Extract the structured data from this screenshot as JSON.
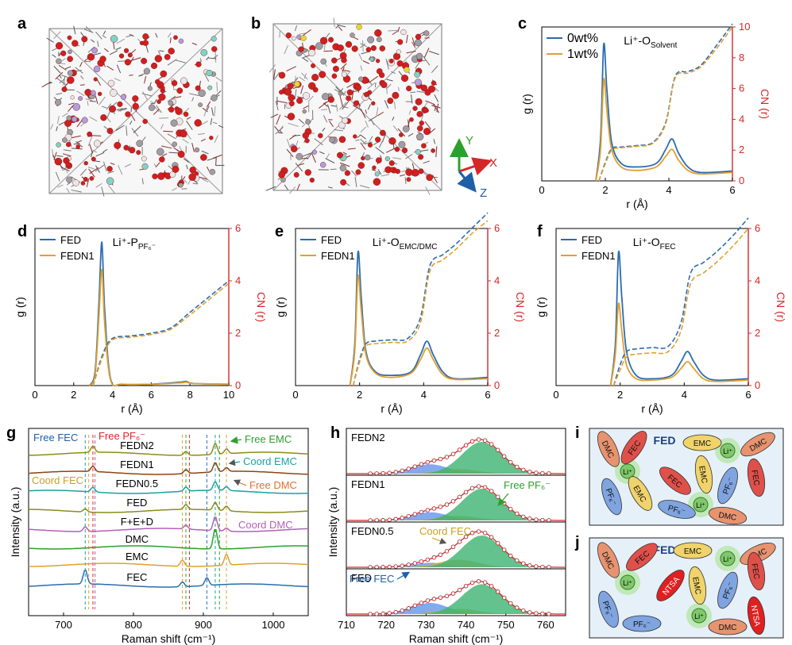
{
  "panel_labels": {
    "a": "a",
    "b": "b",
    "c": "c",
    "d": "d",
    "e": "e",
    "f": "f",
    "g": "g",
    "h": "h",
    "i": "i",
    "j": "j"
  },
  "colors": {
    "blue": "#2b6cb0",
    "orange": "#e0a030",
    "red": "#d62728",
    "green": "#2ca02c",
    "teal": "#17a2a2",
    "purple": "#b55fb5",
    "olive": "#8c8c1a",
    "brown": "#8b4513",
    "fill_green": "#3cb371",
    "fill_blue": "#6495ed",
    "fill_orange": "#d4a843"
  },
  "axes": {
    "axis_labels": {
      "g_r": "g (r)",
      "cn_r": "CN (r)",
      "r_A": "r (Å)",
      "intensity": "Intensity (a.u.)",
      "raman": "Raman shift (cm⁻¹)"
    }
  },
  "panel_c": {
    "legend": [
      "0wt%",
      "1wt%"
    ],
    "annotation": "Li⁺-O",
    "annotation_sub": "Solvent",
    "x_ticks": [
      "0",
      "2",
      "4",
      "6"
    ],
    "cn_ticks": [
      "0",
      "2",
      "4",
      "6",
      "8",
      "10"
    ]
  },
  "panel_d": {
    "legend": [
      "FED",
      "FEDN1"
    ],
    "annotation": "Li⁺-P",
    "annotation_sub": "PF₆⁻",
    "x_ticks": [
      "0",
      "2",
      "4",
      "6",
      "8",
      "10"
    ],
    "cn_ticks": [
      "0",
      "2",
      "4",
      "6"
    ]
  },
  "panel_e": {
    "legend": [
      "FED",
      "FEDN1"
    ],
    "annotation": "Li⁺-O",
    "annotation_sub": "EMC/DMC",
    "x_ticks": [
      "0",
      "2",
      "4",
      "6"
    ],
    "cn_ticks": [
      "0",
      "2",
      "4",
      "6"
    ]
  },
  "panel_f": {
    "legend": [
      "FED",
      "FEDN1"
    ],
    "annotation": "Li⁺-O",
    "annotation_sub": "FEC",
    "x_ticks": [
      "0",
      "2",
      "4",
      "6"
    ],
    "cn_ticks": [
      "0",
      "2",
      "4",
      "6"
    ]
  },
  "panel_g": {
    "traces": [
      "FEDN2",
      "FEDN1",
      "FEDN0.5",
      "FED",
      "F+E+D",
      "DMC",
      "EMC",
      "FEC"
    ],
    "annotations": {
      "free_fec": "Free FEC",
      "free_pf6": "Free PF₆⁻",
      "coord_fec": "Coord  FEC",
      "free_emc": "Free EMC",
      "coord_emc": "Coord EMC",
      "free_dmc": "Free DMC",
      "coord_dmc": "Coord DMC"
    },
    "x_ticks": [
      "700",
      "800",
      "900",
      "1000"
    ]
  },
  "panel_h": {
    "subpanels": [
      "FEDN2",
      "FEDN1",
      "FEDN0.5",
      "FED"
    ],
    "annotations": {
      "free_pf6": "Free PF₆⁻",
      "coord_fec": "Coord  FEC",
      "free_fec": "Free FEC"
    },
    "x_ticks": [
      "710",
      "720",
      "730",
      "740",
      "750",
      "760"
    ]
  },
  "panel_i": {
    "title": "FED",
    "ellipses": [
      "DMC",
      "FEC",
      "EMC",
      "DMC",
      "PF₆⁻",
      "EMC",
      "FEC",
      "EMC",
      "PF₆⁻",
      "FEC",
      "PF₆⁻",
      "DMC"
    ],
    "li": [
      "Li⁺",
      "Li⁺",
      "Li⁺"
    ]
  },
  "panel_j": {
    "title": "FEDN1",
    "ellipses": [
      "DMC",
      "FEC",
      "EMC",
      "DMC",
      "NTSA",
      "PF₆⁻",
      "EMC",
      "FEC",
      "PF₆⁻",
      "PF₆⁻",
      "DMC",
      "NTSA"
    ],
    "li": [
      "Li⁺",
      "Li⁺",
      "Li⁺"
    ]
  },
  "chart_data": [
    {
      "type": "line",
      "panel": "c",
      "title": "Li⁺-O Solvent",
      "xlabel": "r (Å)",
      "ylabel": "g (r)",
      "ylabel_right": "CN (r)",
      "xlim": [
        0,
        6
      ],
      "ylim_right": [
        0,
        10
      ],
      "series": [
        {
          "name": "0wt% g(r)",
          "x": [
            1.7,
            1.85,
            1.95,
            2.05,
            2.2,
            2.5,
            3.0,
            3.6,
            3.9,
            4.1,
            4.3,
            4.6,
            5.0,
            6.0
          ],
          "y": [
            0,
            0.6,
            1.95,
            1.3,
            0.55,
            0.25,
            0.2,
            0.25,
            0.45,
            0.6,
            0.4,
            0.2,
            0.12,
            0.14
          ]
        },
        {
          "name": "1wt% g(r)",
          "x": [
            1.7,
            1.85,
            1.95,
            2.05,
            2.2,
            2.5,
            3.0,
            3.6,
            3.9,
            4.1,
            4.3,
            4.6,
            5.0,
            6.0
          ],
          "y": [
            0,
            0.45,
            1.45,
            1.0,
            0.45,
            0.2,
            0.15,
            0.2,
            0.35,
            0.45,
            0.3,
            0.15,
            0.1,
            0.12
          ]
        },
        {
          "name": "0wt% CN",
          "x": [
            1.8,
            2.0,
            2.2,
            2.5,
            3.0,
            3.5,
            3.9,
            4.2,
            4.6,
            5.0,
            5.5,
            6.0
          ],
          "y": [
            0,
            1.2,
            2.1,
            2.2,
            2.3,
            2.5,
            3.8,
            6.8,
            7.1,
            7.5,
            8.8,
            10.2
          ]
        },
        {
          "name": "1wt% CN",
          "x": [
            1.8,
            2.0,
            2.2,
            2.5,
            3.0,
            3.5,
            3.9,
            4.2,
            4.6,
            5.0,
            5.5,
            6.0
          ],
          "y": [
            0,
            1.1,
            2.0,
            2.15,
            2.25,
            2.45,
            3.7,
            6.7,
            7.0,
            7.4,
            8.6,
            10.0
          ]
        }
      ]
    },
    {
      "type": "line",
      "panel": "d",
      "title": "Li⁺-P PF₆⁻",
      "xlabel": "r (Å)",
      "ylabel": "g (r)",
      "ylabel_right": "CN (r)",
      "xlim": [
        0,
        10
      ],
      "ylim_right": [
        0,
        6
      ],
      "series": [
        {
          "name": "FED g(r)",
          "x": [
            2.8,
            3.1,
            3.3,
            3.45,
            3.6,
            3.9,
            4.5,
            6.0,
            7.5,
            7.8,
            8.2,
            10.0
          ],
          "y": [
            0,
            0.2,
            1.2,
            2.1,
            1.1,
            0.1,
            0.02,
            0.02,
            0.05,
            0.06,
            0.03,
            0.02
          ]
        },
        {
          "name": "FEDN1 g(r)",
          "x": [
            2.8,
            3.1,
            3.3,
            3.45,
            3.6,
            3.9,
            4.5,
            6.0,
            7.5,
            7.8,
            8.2,
            10.0
          ],
          "y": [
            0,
            0.15,
            1.0,
            1.7,
            0.9,
            0.08,
            0.02,
            0.02,
            0.04,
            0.05,
            0.03,
            0.02
          ]
        },
        {
          "name": "FED CN",
          "x": [
            3.0,
            3.5,
            4.0,
            5.0,
            6.0,
            7.0,
            8.0,
            9.0,
            10.0
          ],
          "y": [
            0,
            1.2,
            1.8,
            1.9,
            2.0,
            2.2,
            2.8,
            3.4,
            4.0
          ]
        },
        {
          "name": "FEDN1 CN",
          "x": [
            3.0,
            3.5,
            4.0,
            5.0,
            6.0,
            7.0,
            8.0,
            9.0,
            10.0
          ],
          "y": [
            0,
            1.1,
            1.75,
            1.85,
            1.95,
            2.15,
            2.7,
            3.3,
            3.9
          ]
        }
      ]
    },
    {
      "type": "line",
      "panel": "e",
      "title": "Li⁺-O EMC/DMC",
      "xlabel": "r (Å)",
      "ylabel": "g (r)",
      "ylabel_right": "CN (r)",
      "xlim": [
        0,
        6
      ],
      "ylim_right": [
        0,
        6
      ],
      "series": [
        {
          "name": "FED g(r)",
          "x": [
            1.7,
            1.85,
            1.95,
            2.05,
            2.2,
            2.5,
            3.0,
            3.6,
            3.9,
            4.1,
            4.3,
            4.6,
            5.0,
            6.0
          ],
          "y": [
            0,
            0.6,
            1.95,
            1.3,
            0.5,
            0.2,
            0.15,
            0.2,
            0.45,
            0.65,
            0.45,
            0.2,
            0.1,
            0.12
          ]
        },
        {
          "name": "FEDN1 g(r)",
          "x": [
            1.7,
            1.85,
            1.95,
            2.05,
            2.2,
            2.5,
            3.0,
            3.6,
            3.9,
            4.1,
            4.3,
            4.6,
            5.0,
            6.0
          ],
          "y": [
            0,
            0.5,
            1.6,
            1.1,
            0.45,
            0.18,
            0.12,
            0.18,
            0.38,
            0.55,
            0.38,
            0.16,
            0.09,
            0.1
          ]
        },
        {
          "name": "FED CN",
          "x": [
            1.8,
            2.0,
            2.2,
            2.5,
            3.0,
            3.5,
            3.9,
            4.2,
            4.6,
            5.0,
            5.5,
            6.0
          ],
          "y": [
            0,
            1.0,
            1.6,
            1.7,
            1.75,
            1.8,
            2.6,
            4.6,
            5.0,
            5.4,
            6.0,
            6.6
          ]
        },
        {
          "name": "FEDN1 CN",
          "x": [
            1.8,
            2.0,
            2.2,
            2.5,
            3.0,
            3.5,
            3.9,
            4.2,
            4.6,
            5.0,
            5.5,
            6.0
          ],
          "y": [
            0,
            0.9,
            1.5,
            1.6,
            1.65,
            1.7,
            2.4,
            4.4,
            4.8,
            5.2,
            5.8,
            6.3
          ]
        }
      ]
    },
    {
      "type": "line",
      "panel": "f",
      "title": "Li⁺-O FEC",
      "xlabel": "r (Å)",
      "ylabel": "g (r)",
      "ylabel_right": "CN (r)",
      "xlim": [
        0,
        6
      ],
      "ylim_right": [
        0,
        6
      ],
      "series": [
        {
          "name": "FED g(r)",
          "x": [
            1.7,
            1.85,
            1.95,
            2.05,
            2.2,
            2.5,
            3.0,
            3.6,
            3.9,
            4.1,
            4.3,
            4.6,
            5.0,
            6.0
          ],
          "y": [
            0,
            0.6,
            1.95,
            1.3,
            0.5,
            0.15,
            0.1,
            0.15,
            0.35,
            0.5,
            0.35,
            0.15,
            0.08,
            0.1
          ]
        },
        {
          "name": "FEDN1 g(r)",
          "x": [
            1.7,
            1.85,
            1.95,
            2.05,
            2.2,
            2.5,
            3.0,
            3.6,
            3.9,
            4.1,
            4.3,
            4.6,
            5.0,
            6.0
          ],
          "y": [
            0,
            0.45,
            1.2,
            0.8,
            0.3,
            0.1,
            0.08,
            0.12,
            0.25,
            0.35,
            0.25,
            0.1,
            0.06,
            0.08
          ]
        },
        {
          "name": "FED CN",
          "x": [
            1.8,
            2.0,
            2.2,
            2.5,
            3.0,
            3.5,
            3.9,
            4.2,
            4.6,
            5.0,
            5.5,
            6.0
          ],
          "y": [
            0,
            0.8,
            1.3,
            1.4,
            1.45,
            1.5,
            2.4,
            4.3,
            4.7,
            5.1,
            5.7,
            6.4
          ]
        },
        {
          "name": "FEDN1 CN",
          "x": [
            1.8,
            2.0,
            2.2,
            2.5,
            3.0,
            3.5,
            3.9,
            4.2,
            4.6,
            5.0,
            5.5,
            6.0
          ],
          "y": [
            0,
            0.6,
            1.1,
            1.2,
            1.25,
            1.3,
            2.1,
            3.9,
            4.3,
            4.7,
            5.3,
            6.0
          ]
        }
      ]
    },
    {
      "type": "line",
      "panel": "g",
      "xlabel": "Raman shift (cm⁻¹)",
      "ylabel": "Intensity (a.u.)",
      "xlim": [
        650,
        1050
      ],
      "peaks_cm": [
        731,
        742,
        870,
        876,
        905,
        917,
        933
      ],
      "series": [
        {
          "name": "FEDN2",
          "offset": 7
        },
        {
          "name": "FEDN1",
          "offset": 6
        },
        {
          "name": "FEDN0.5",
          "offset": 5
        },
        {
          "name": "FED",
          "offset": 4
        },
        {
          "name": "F+E+D",
          "offset": 3
        },
        {
          "name": "DMC",
          "offset": 2
        },
        {
          "name": "EMC",
          "offset": 1
        },
        {
          "name": "FEC",
          "offset": 0
        }
      ]
    },
    {
      "type": "area",
      "panel": "h",
      "xlabel": "Raman shift (cm⁻¹)",
      "ylabel": "Intensity (a.u.)",
      "xlim": [
        710,
        765
      ],
      "components": [
        {
          "name": "Free FEC",
          "center": 731,
          "width": 6
        },
        {
          "name": "Coord FEC",
          "center": 738,
          "width": 6
        },
        {
          "name": "Free PF₆⁻",
          "center": 744,
          "width": 6
        }
      ]
    }
  ]
}
